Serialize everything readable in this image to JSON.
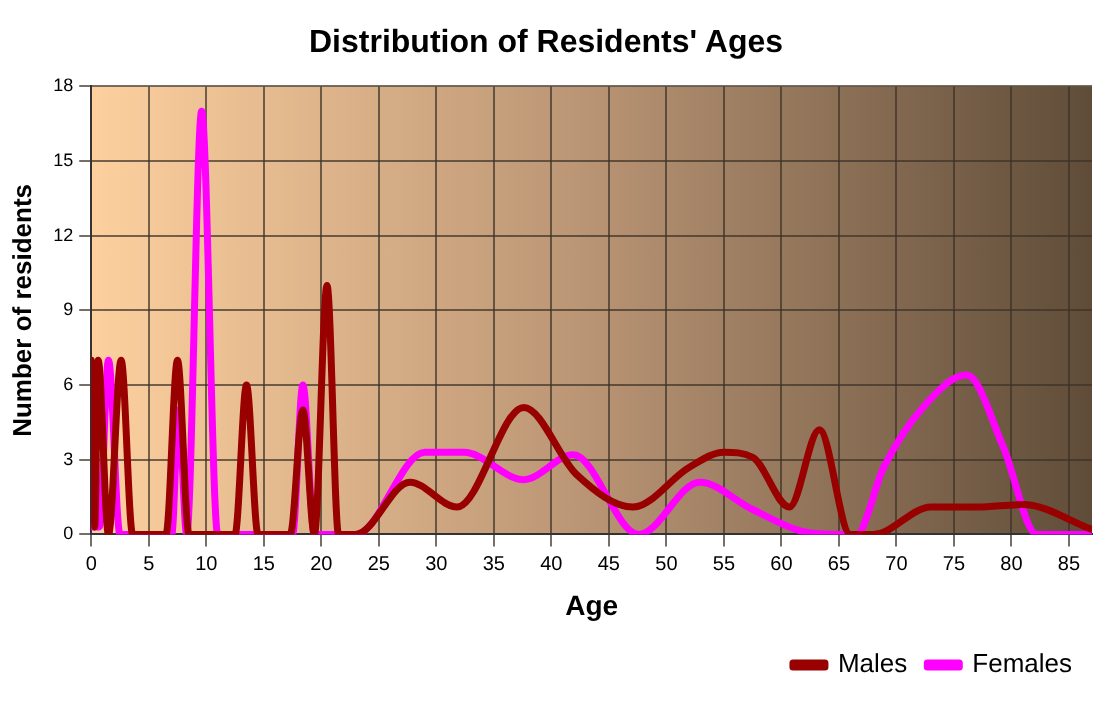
{
  "chart_data": {
    "type": "line",
    "title": "Distribution of Residents' Ages",
    "xlabel": "Age",
    "ylabel": "Number of residents",
    "xlim": [
      0,
      87
    ],
    "xticks": [
      0,
      5,
      10,
      15,
      20,
      25,
      30,
      35,
      40,
      45,
      50,
      55,
      60,
      65,
      70,
      75,
      80,
      85
    ],
    "ylim": [
      0,
      18
    ],
    "yticks": [
      0,
      3,
      6,
      9,
      12,
      15,
      18
    ],
    "grid": true,
    "legend": "bottom right",
    "marker": "none",
    "line_style": "solid",
    "series": [
      {
        "name": "Males",
        "color": "#990000",
        "x": [
          0,
          0.3,
          0.6,
          1.5,
          2.6,
          3.6,
          6.5,
          7.5,
          8.5,
          12.5,
          13.5,
          14.5,
          17.3,
          18.4,
          19.4,
          20.5,
          21.5,
          23,
          27.7,
          31.8,
          37.6,
          42.2,
          47.1,
          52,
          55,
          57.5,
          60.7,
          63.3,
          66,
          68,
          73,
          77,
          81,
          87
        ],
        "values": [
          7,
          0.3,
          7,
          0,
          7,
          0,
          0,
          7,
          0,
          0,
          6,
          0,
          0,
          5,
          0,
          10,
          0,
          0,
          2.1,
          1.1,
          5.1,
          2.4,
          1.1,
          2.7,
          3.3,
          3.1,
          1.1,
          4.2,
          0,
          0,
          1.1,
          1.1,
          1.2,
          0.2
        ]
      },
      {
        "name": "Females",
        "color": "#ff00ff",
        "x": [
          0,
          0.7,
          1.5,
          2.5,
          7,
          7.6,
          8.3,
          9.6,
          11,
          17.5,
          18.4,
          19.4,
          23,
          29,
          32.4,
          37.6,
          41.9,
          47.6,
          52.9,
          57.5,
          62,
          65,
          66.5,
          68.9,
          72.3,
          76.1,
          79.3,
          82.2,
          87
        ],
        "values": [
          0.3,
          0.3,
          7,
          0,
          0,
          5,
          0,
          17,
          0,
          0,
          6,
          0,
          0,
          3.3,
          3.3,
          2.2,
          3.2,
          0,
          2.1,
          1,
          0.1,
          0,
          0,
          2.7,
          5.1,
          6.4,
          3.5,
          0,
          0
        ]
      }
    ]
  }
}
